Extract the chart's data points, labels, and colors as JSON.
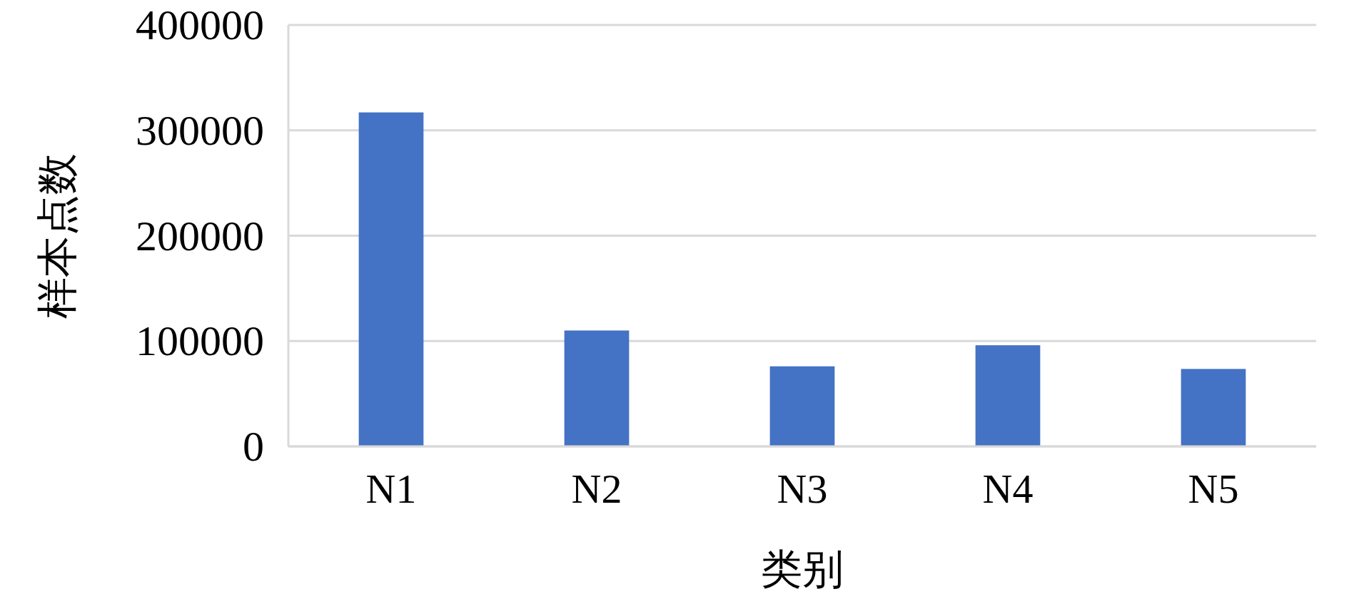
{
  "chart_data": {
    "type": "bar",
    "xlabel": "类别",
    "ylabel": "样本点数",
    "categories": [
      "N1",
      "N2",
      "N3",
      "N4",
      "N5"
    ],
    "series": [
      {
        "color": "#4472c4",
        "values": [
          317000,
          110000,
          76000,
          96000,
          73500
        ]
      }
    ],
    "ylim": [
      0,
      400000
    ],
    "yticks": [
      0,
      100000,
      200000,
      300000,
      400000
    ],
    "grid": "y"
  }
}
